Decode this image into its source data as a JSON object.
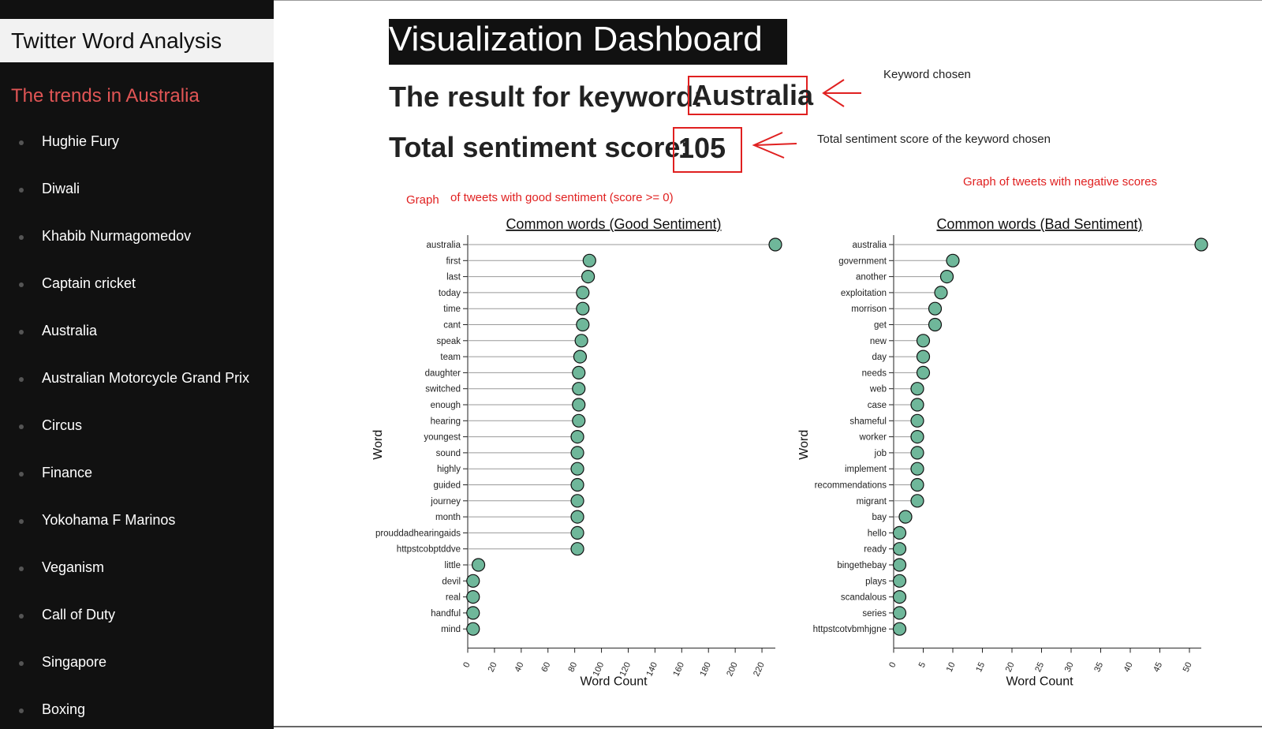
{
  "sidebar": {
    "title": "Twitter Word Analysis",
    "subtitle": "The trends in Australia",
    "items": [
      "Hughie Fury",
      "Diwali",
      "Khabib Nurmagomedov",
      "Captain cricket",
      "Australia",
      "Australian Motorcycle Grand Prix",
      "Circus",
      "Finance",
      "Yokohama F Marinos",
      "Veganism",
      "Call of Duty",
      "Singapore",
      "Boxing"
    ]
  },
  "dashboard": {
    "title": "Visualization Dashboard",
    "keyword_label": "The result for keyword:",
    "keyword_value": "Australia",
    "score_label": "Total sentiment score:",
    "score_value": "105"
  },
  "annotations": {
    "keyword_chosen": "Keyword chosen",
    "score_note": "Total sentiment score of the keyword chosen",
    "good_graph_a": "Graph",
    "good_graph_b": "of tweets with good sentiment (score >= 0)",
    "bad_graph": "Graph of tweets with negative scores"
  },
  "colors": {
    "dot": "#6fb79a",
    "annotation": "#e02020",
    "sidebar_bg": "#111111",
    "subtitle": "#e05555"
  },
  "chart_data": [
    {
      "type": "lollipop",
      "title": "Common words (Good Sentiment)",
      "xlabel": "Word Count",
      "ylabel": "Word",
      "xlim": [
        0,
        230
      ],
      "xticks": [
        0,
        20,
        40,
        60,
        80,
        100,
        120,
        140,
        160,
        180,
        200,
        220
      ],
      "categories": [
        "australia",
        "first",
        "last",
        "today",
        "time",
        "cant",
        "speak",
        "team",
        "daughter",
        "switched",
        "enough",
        "hearing",
        "youngest",
        "sound",
        "highly",
        "guided",
        "journey",
        "month",
        "prouddadhearingaids",
        "httpstcobptddve",
        "little",
        "devil",
        "real",
        "handful",
        "mind"
      ],
      "values": [
        230,
        91,
        90,
        86,
        86,
        86,
        85,
        84,
        83,
        83,
        83,
        83,
        82,
        82,
        82,
        82,
        82,
        82,
        82,
        82,
        8,
        4,
        4,
        4,
        4
      ]
    },
    {
      "type": "lollipop",
      "title": "Common words (Bad Sentiment)",
      "xlabel": "Word Count",
      "ylabel": "Word",
      "xlim": [
        0,
        52
      ],
      "xticks": [
        0,
        5,
        10,
        15,
        20,
        25,
        30,
        35,
        40,
        45,
        50
      ],
      "categories": [
        "australia",
        "government",
        "another",
        "exploitation",
        "morrison",
        "get",
        "new",
        "day",
        "needs",
        "web",
        "case",
        "shameful",
        "worker",
        "job",
        "implement",
        "recommendations",
        "migrant",
        "bay",
        "hello",
        "ready",
        "bingethebay",
        "plays",
        "scandalous",
        "series",
        "httpstcotvbmhjgne"
      ],
      "values": [
        52,
        10,
        9,
        8,
        7,
        7,
        5,
        5,
        5,
        4,
        4,
        4,
        4,
        4,
        4,
        4,
        4,
        2,
        1,
        1,
        1,
        1,
        1,
        1,
        1
      ]
    }
  ]
}
